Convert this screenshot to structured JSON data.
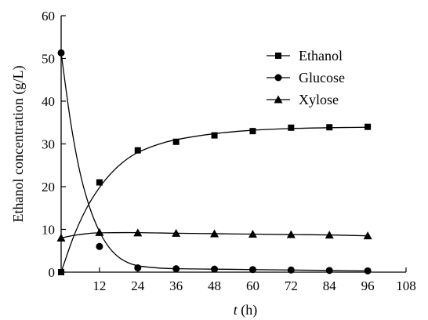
{
  "chart_data": {
    "type": "line",
    "xlabel": {
      "var": "t",
      "unit": " (h)"
    },
    "ylabel": "Ethanol concentration (g/L)",
    "xlim": [
      0,
      108
    ],
    "ylim": [
      0,
      60
    ],
    "x_ticks": [
      12,
      24,
      36,
      48,
      60,
      72,
      84,
      96,
      108
    ],
    "y_ticks": [
      0,
      10,
      20,
      30,
      40,
      50,
      60
    ],
    "grid": false,
    "legend_position": "top-right",
    "series": [
      {
        "name": "Ethanol",
        "marker": "square",
        "x": [
          0,
          12,
          24,
          36,
          48,
          60,
          72,
          84,
          96
        ],
        "y": [
          0,
          21,
          28.5,
          30.5,
          32,
          33,
          33.8,
          33.9,
          34
        ],
        "fit": [
          [
            0,
            0
          ],
          [
            4,
            8.5
          ],
          [
            8,
            15
          ],
          [
            12,
            19.8
          ],
          [
            16,
            23.4
          ],
          [
            20,
            26.1
          ],
          [
            24,
            28
          ],
          [
            30,
            29.8
          ],
          [
            36,
            31
          ],
          [
            48,
            32.4
          ],
          [
            60,
            33.2
          ],
          [
            72,
            33.6
          ],
          [
            84,
            33.8
          ],
          [
            96,
            33.9
          ]
        ]
      },
      {
        "name": "Glucose",
        "marker": "circle",
        "x": [
          0,
          12,
          24,
          36,
          48,
          60,
          72,
          84,
          96
        ],
        "y": [
          51.3,
          6,
          1,
          0.8,
          0.7,
          0.6,
          0.5,
          0.4,
          0.3
        ],
        "fit": [
          [
            0,
            51.3
          ],
          [
            3,
            35
          ],
          [
            6,
            23
          ],
          [
            9,
            15
          ],
          [
            12,
            9.5
          ],
          [
            15,
            5.8
          ],
          [
            18,
            3.5
          ],
          [
            21,
            2.2
          ],
          [
            24,
            1.5
          ],
          [
            30,
            1
          ],
          [
            36,
            0.8
          ],
          [
            48,
            0.7
          ],
          [
            60,
            0.6
          ],
          [
            72,
            0.5
          ],
          [
            84,
            0.4
          ],
          [
            96,
            0.3
          ]
        ]
      },
      {
        "name": "Xylose",
        "marker": "triangle",
        "x": [
          0,
          12,
          24,
          36,
          48,
          60,
          72,
          84,
          96
        ],
        "y": [
          8,
          9.3,
          9.2,
          9.1,
          9,
          8.9,
          8.8,
          8.7,
          8.5
        ],
        "fit": [
          [
            0,
            8
          ],
          [
            4,
            8.6
          ],
          [
            8,
            9
          ],
          [
            12,
            9.2
          ],
          [
            24,
            9.25
          ],
          [
            36,
            9.1
          ],
          [
            48,
            9
          ],
          [
            60,
            8.9
          ],
          [
            72,
            8.8
          ],
          [
            84,
            8.7
          ],
          [
            96,
            8.5
          ]
        ]
      }
    ]
  }
}
